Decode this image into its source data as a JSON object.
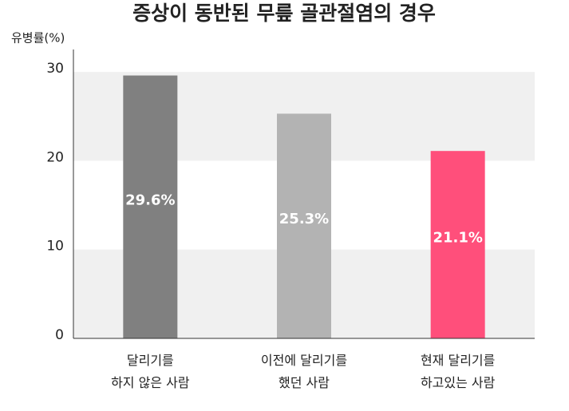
{
  "chart_data": {
    "type": "bar",
    "title": "증상이 동반된 무릎 골관절염의 경우",
    "y_label": "유병률(%)",
    "categories": [
      "달리기를\n하지 않은 사람",
      "이전에 달리기를\n했던 사람",
      "현재 달리기를\n하고있는 사람"
    ],
    "values": [
      29.6,
      25.3,
      21.1
    ],
    "value_labels": [
      "29.6%",
      "25.3%",
      "21.1%"
    ],
    "colors": [
      "#808080",
      "#b3b3b3",
      "#ff4f7b"
    ],
    "ylim": [
      0,
      31
    ],
    "yticks": [
      0,
      10,
      20,
      30
    ],
    "grid": true
  }
}
